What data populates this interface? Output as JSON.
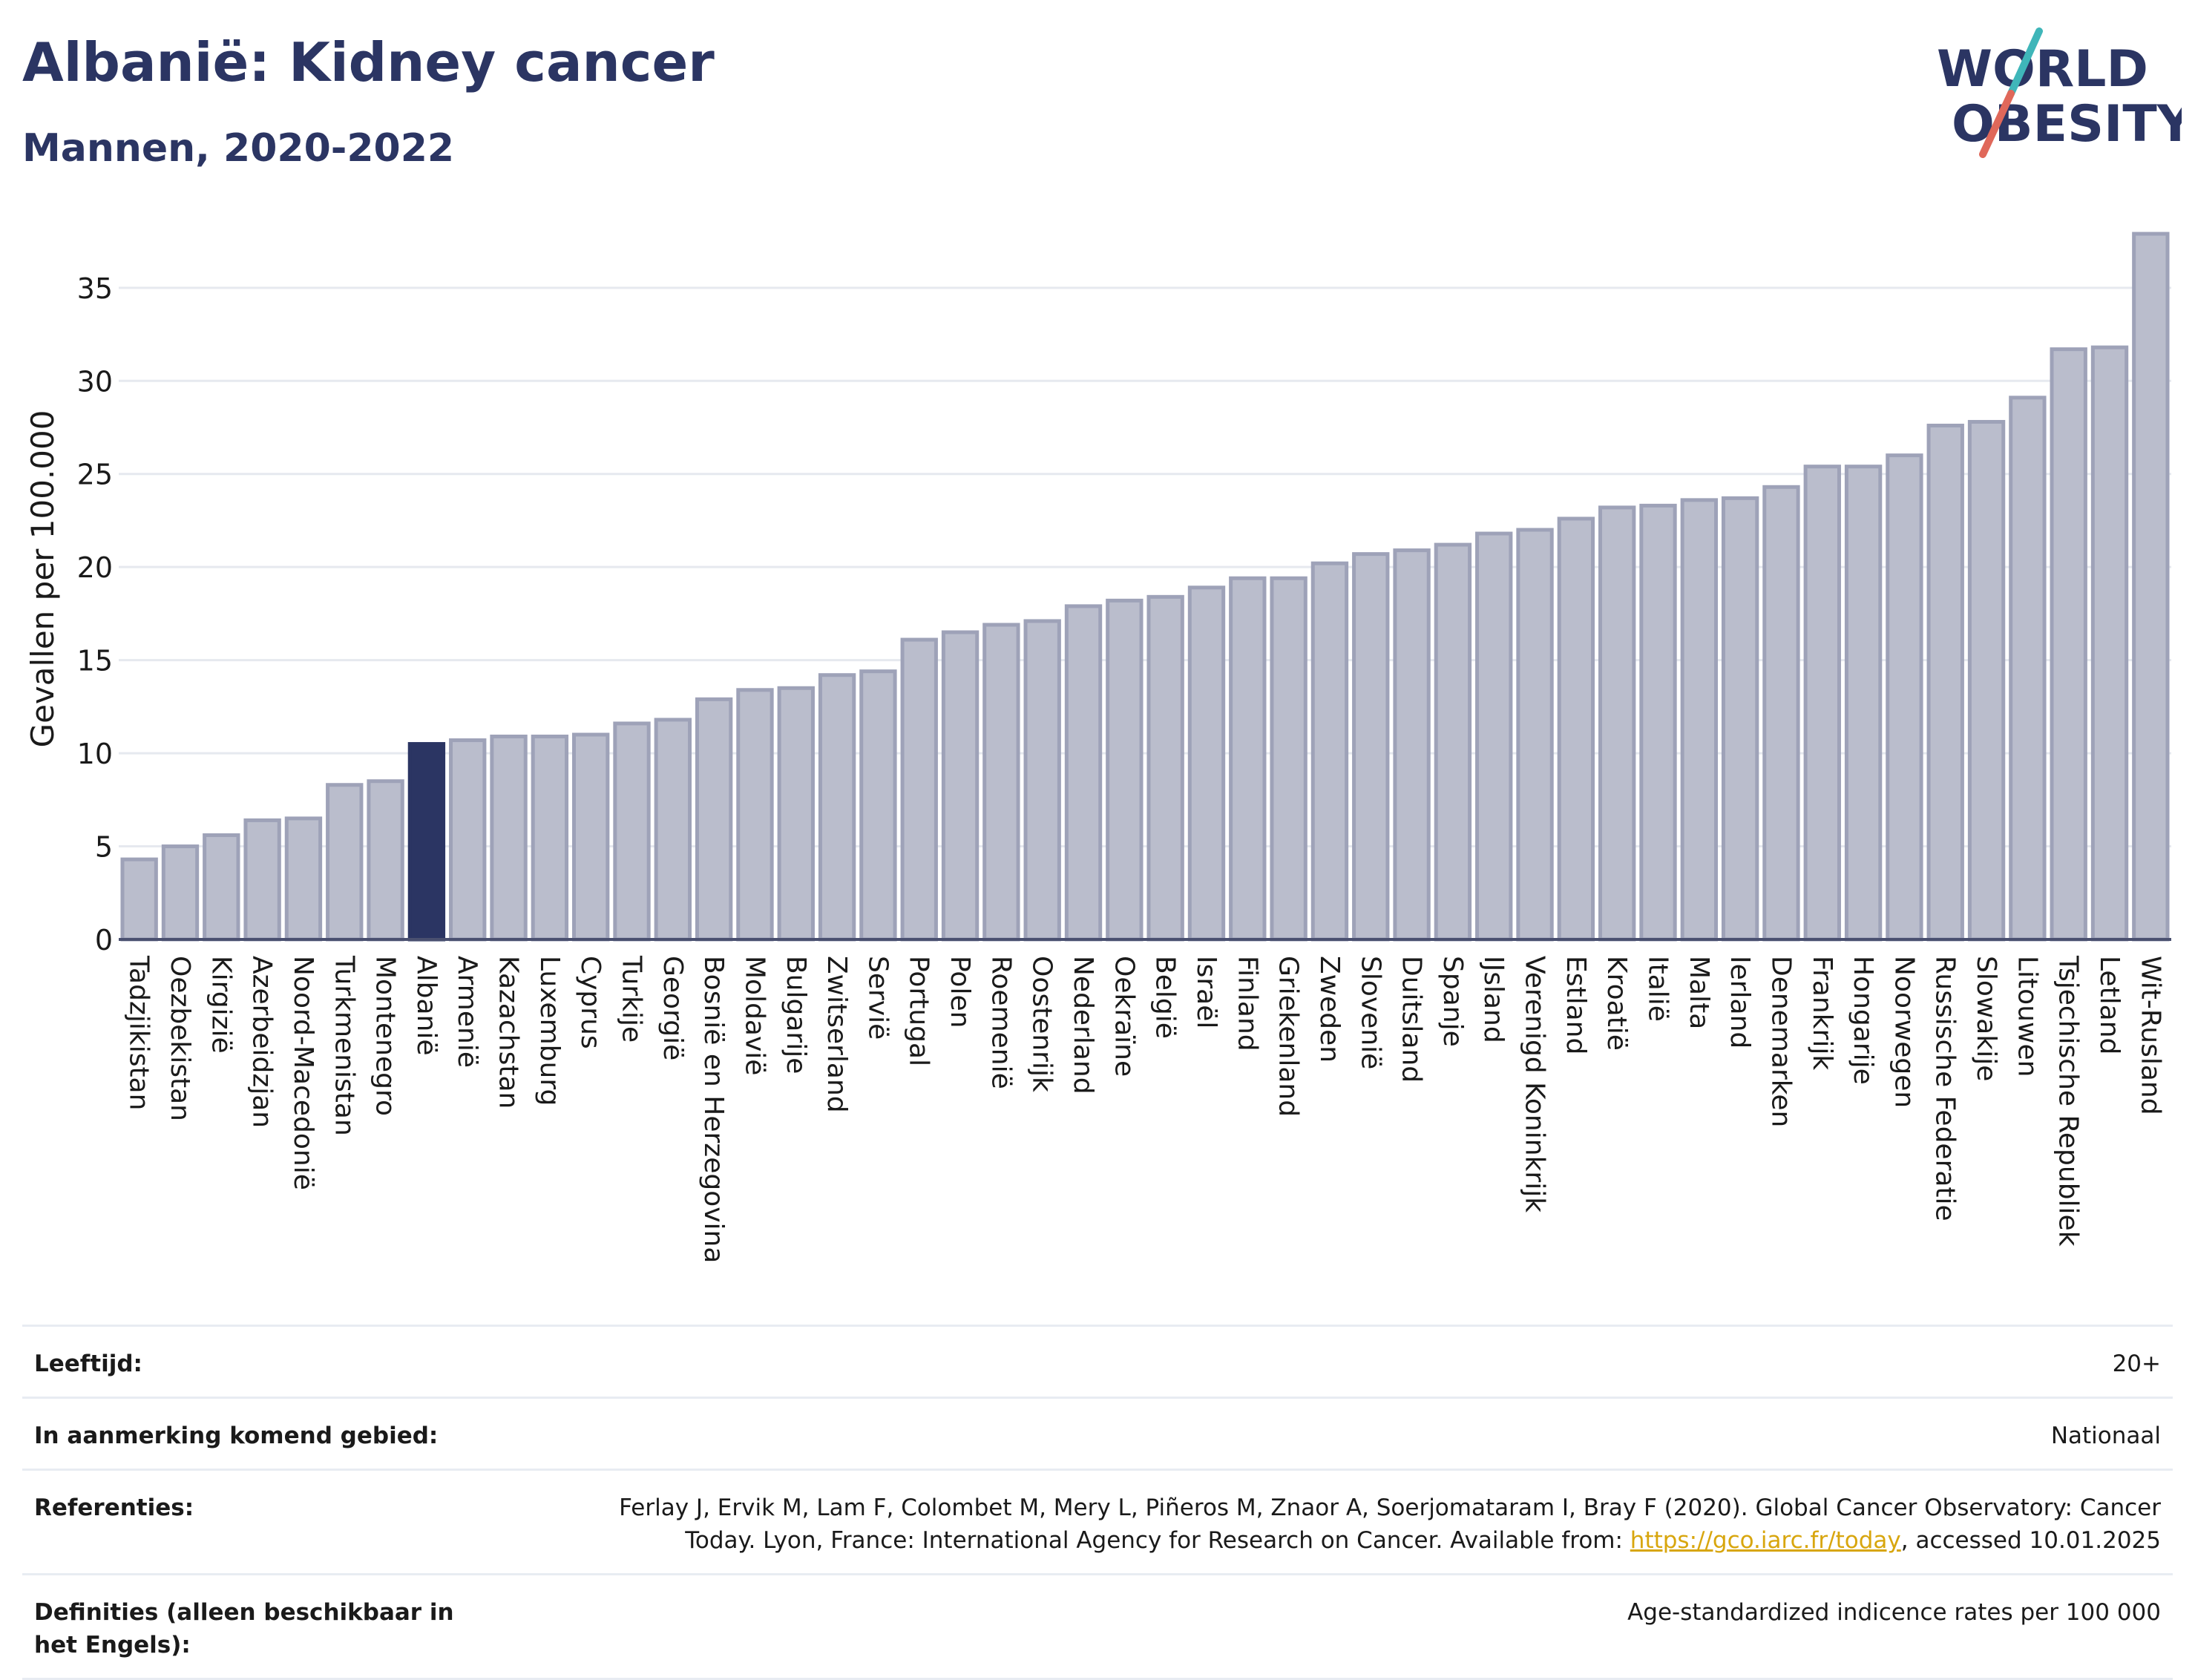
{
  "header": {
    "title": "Albanië: Kidney cancer",
    "subtitle": "Mannen, 2020-2022"
  },
  "logo": {
    "line1": "WORLD",
    "line2": "OBESITY",
    "accent_colors": [
      "#3fb6b9",
      "#e0685a"
    ],
    "text_color": "#2b3563"
  },
  "chart_data": {
    "type": "bar",
    "title": "Albanië: Kidney cancer",
    "subtitle": "Mannen, 2020-2022",
    "xlabel": "",
    "ylabel": "Gevallen per 100.000",
    "ylim": [
      0,
      38.5
    ],
    "yticks": [
      0,
      5,
      10,
      15,
      20,
      25,
      30,
      35
    ],
    "grid": true,
    "highlight": "Albanië",
    "colors": {
      "bar": "#babdcc",
      "bar_edge": "#9ea2b8",
      "highlight": "#2b3563",
      "grid": "#e6e9ef",
      "axis": "#4a5070"
    },
    "categories": [
      "Tadzjikistan",
      "Oezbekistan",
      "Kirgizië",
      "Azerbeidzjan",
      "Noord-Macedonië",
      "Turkmenistan",
      "Montenegro",
      "Albanië",
      "Armenië",
      "Kazachstan",
      "Luxemburg",
      "Cyprus",
      "Turkije",
      "Georgië",
      "Bosnië en Herzegovina",
      "Moldavië",
      "Bulgarije",
      "Zwitserland",
      "Servië",
      "Portugal",
      "Polen",
      "Roemenië",
      "Oostenrijk",
      "Nederland",
      "Oekraïne",
      "België",
      "Israël",
      "Finland",
      "Griekenland",
      "Zweden",
      "Slovenië",
      "Duitsland",
      "Spanje",
      "IJsland",
      "Verenigd Koninkrijk",
      "Estland",
      "Kroatië",
      "Italië",
      "Malta",
      "Ierland",
      "Denemarken",
      "Frankrijk",
      "Hongarije",
      "Noorwegen",
      "Russische Federatie",
      "Slowakije",
      "Litouwen",
      "Tsjechische Republiek",
      "Letland",
      "Wit-Rusland"
    ],
    "values": [
      4.3,
      5.0,
      5.6,
      6.4,
      6.5,
      8.3,
      8.5,
      10.5,
      10.7,
      10.9,
      10.9,
      11.0,
      11.6,
      11.8,
      12.9,
      13.4,
      13.5,
      14.2,
      14.4,
      16.1,
      16.5,
      16.9,
      17.1,
      17.9,
      18.2,
      18.4,
      18.9,
      19.4,
      19.4,
      20.2,
      20.7,
      20.9,
      21.2,
      21.8,
      22.0,
      22.6,
      23.2,
      23.3,
      23.6,
      23.7,
      24.3,
      25.4,
      25.4,
      26.0,
      27.6,
      27.8,
      29.1,
      31.7,
      31.8,
      37.9
    ]
  },
  "info": {
    "age_label": "Leeftijd:",
    "age_value": "20+",
    "area_label": "In aanmerking komend gebied:",
    "area_value": "Nationaal",
    "ref_label": "Referenties:",
    "ref_text": "Ferlay J, Ervik M, Lam F, Colombet M, Mery L, Piñeros M, Znaor A, Soerjomataram I, Bray F (2020). Global Cancer Observatory: Cancer Today. Lyon, France: International Agency for Research on Cancer. Available from: ",
    "ref_link": "https://gco.iarc.fr/today",
    "ref_suffix": ", accessed 10.01.2025",
    "def_label": "Definities (alleen beschikbaar in het Engels):",
    "def_value": "Age-standardized indicence rates per 100 000"
  }
}
